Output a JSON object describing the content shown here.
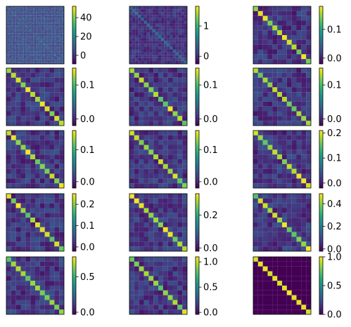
{
  "chart_data": [
    {
      "type": "heatmap",
      "grid_size": 60,
      "pattern": "noisy",
      "colorbar": {
        "min": -9,
        "max": 52,
        "ticks": [
          0,
          20,
          40
        ],
        "tick_labels": [
          "0",
          "20",
          "40"
        ]
      }
    },
    {
      "type": "heatmap",
      "grid_size": 20,
      "pattern": "diagonal-faint",
      "colorbar": {
        "min": -0.25,
        "max": 1.65,
        "ticks": [
          0,
          1
        ],
        "tick_labels": [
          "0",
          "1"
        ]
      }
    },
    {
      "type": "heatmap",
      "grid_size": 12,
      "pattern": "diagonal",
      "colorbar": {
        "min": -0.02,
        "max": 0.18,
        "ticks": [
          0.0,
          0.1
        ],
        "tick_labels": [
          "0.0",
          "0.1"
        ]
      }
    },
    {
      "type": "heatmap",
      "grid_size": 12,
      "pattern": "diagonal",
      "colorbar": {
        "min": -0.02,
        "max": 0.15,
        "ticks": [
          0.0,
          0.1
        ],
        "tick_labels": [
          "0.0",
          "0.1"
        ]
      }
    },
    {
      "type": "heatmap",
      "grid_size": 12,
      "pattern": "diagonal",
      "colorbar": {
        "min": -0.02,
        "max": 0.15,
        "ticks": [
          0.0,
          0.1
        ],
        "tick_labels": [
          "0.0",
          "0.1"
        ]
      }
    },
    {
      "type": "heatmap",
      "grid_size": 12,
      "pattern": "diagonal",
      "colorbar": {
        "min": -0.02,
        "max": 0.15,
        "ticks": [
          0.0,
          0.1
        ],
        "tick_labels": [
          "0.0",
          "0.1"
        ]
      }
    },
    {
      "type": "heatmap",
      "grid_size": 12,
      "pattern": "diagonal",
      "colorbar": {
        "min": -0.02,
        "max": 0.16,
        "ticks": [
          0.0,
          0.1
        ],
        "tick_labels": [
          "0.0",
          "0.1"
        ]
      }
    },
    {
      "type": "heatmap",
      "grid_size": 12,
      "pattern": "diagonal",
      "colorbar": {
        "min": -0.02,
        "max": 0.16,
        "ticks": [
          0.0,
          0.1
        ],
        "tick_labels": [
          "0.0",
          "0.1"
        ]
      }
    },
    {
      "type": "heatmap",
      "grid_size": 12,
      "pattern": "diagonal",
      "colorbar": {
        "min": -0.02,
        "max": 0.21,
        "ticks": [
          0.0,
          0.1,
          0.2
        ],
        "tick_labels": [
          "0.0",
          "0.1",
          "0.2"
        ]
      }
    },
    {
      "type": "heatmap",
      "grid_size": 12,
      "pattern": "diagonal",
      "colorbar": {
        "min": -0.02,
        "max": 0.25,
        "ticks": [
          0.0,
          0.1,
          0.2
        ],
        "tick_labels": [
          "0.0",
          "0.1",
          "0.2"
        ]
      }
    },
    {
      "type": "heatmap",
      "grid_size": 12,
      "pattern": "diagonal",
      "colorbar": {
        "min": -0.02,
        "max": 0.33,
        "ticks": [
          0.0,
          0.2
        ],
        "tick_labels": [
          "0.0",
          "0.2"
        ]
      }
    },
    {
      "type": "heatmap",
      "grid_size": 12,
      "pattern": "diagonal",
      "colorbar": {
        "min": -0.02,
        "max": 0.49,
        "ticks": [
          0.0,
          0.2,
          0.4
        ],
        "tick_labels": [
          "0.0",
          "0.2",
          "0.4"
        ]
      }
    },
    {
      "type": "heatmap",
      "grid_size": 12,
      "pattern": "diagonal",
      "colorbar": {
        "min": -0.03,
        "max": 0.78,
        "ticks": [
          0.0,
          0.5
        ],
        "tick_labels": [
          "0.0",
          "0.5"
        ]
      }
    },
    {
      "type": "heatmap",
      "grid_size": 12,
      "pattern": "diagonal",
      "colorbar": {
        "min": -0.04,
        "max": 1.1,
        "ticks": [
          0.0,
          0.5,
          1.0
        ],
        "tick_labels": [
          "0.0",
          "0.5",
          "1.0"
        ]
      }
    },
    {
      "type": "heatmap",
      "grid_size": 12,
      "pattern": "identity",
      "colorbar": {
        "min": 0.0,
        "max": 1.0,
        "ticks": [
          0.0,
          0.5,
          1.0
        ],
        "tick_labels": [
          "0.0",
          "0.5",
          "1.0"
        ]
      }
    }
  ],
  "colormap": "viridis"
}
